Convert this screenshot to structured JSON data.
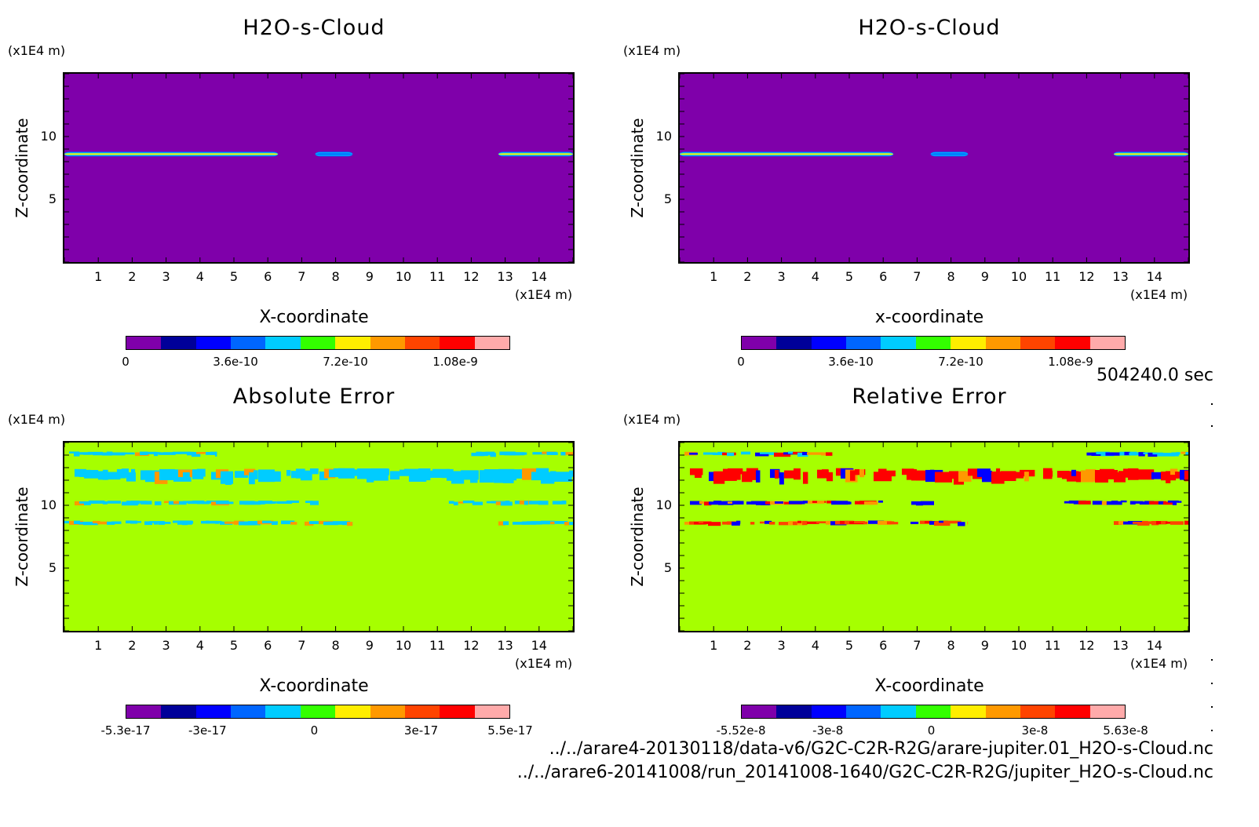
{
  "time_label": "504240.0 sec",
  "files": [
    "../../arare4-20130118/data-v6/G2C-C2R-R2G/arare-jupiter.01_H2O-s-Cloud.nc",
    "../../arare6-20141008/run_20141008-1640/G2C-C2R-R2G/jupiter_H2O-s-Cloud.nc"
  ],
  "colors": {
    "field_bg": "#7f00aa",
    "error_bg": "#a6ff00",
    "colorbar": [
      "#7f00aa",
      "#000099",
      "#0000ff",
      "#0066ff",
      "#00ccff",
      "#33ff00",
      "#ffee00",
      "#ff9900",
      "#ff4400",
      "#ff0000",
      "#ffaaaa"
    ]
  },
  "chart_data": [
    {
      "type": "heatmap",
      "title": "H2O-s-Cloud",
      "xlabel": "X-coordinate",
      "ylabel": "Z-coordinate",
      "x_unit": "(x1E4 m)",
      "y_unit": "(x1E4 m)",
      "xlim": [
        0,
        15
      ],
      "ylim": [
        0,
        15
      ],
      "xticks": [
        "1",
        "2",
        "3",
        "4",
        "5",
        "6",
        "7",
        "8",
        "9",
        "10",
        "11",
        "12",
        "13",
        "14"
      ],
      "yticks": [
        "10",
        "5"
      ],
      "colorbar_labels": [
        "0",
        "3.6e-10",
        "7.2e-10",
        "1.08e-9"
      ],
      "colorbar_label_values": [
        0,
        3.6e-10,
        7.2e-10,
        1.08e-09
      ],
      "colorbar_range": [
        0,
        1.26e-09
      ],
      "features": [
        {
          "z": 8.6,
          "x": [
            0,
            6.3
          ],
          "peak": 7.2e-10
        },
        {
          "z": 8.6,
          "x": [
            7.4,
            8.5
          ],
          "peak": 3.6e-10
        },
        {
          "z": 8.6,
          "x": [
            12.8,
            15
          ],
          "peak": 7.2e-10
        }
      ]
    },
    {
      "type": "heatmap",
      "title": "H2O-s-Cloud",
      "xlabel": "x-coordinate",
      "ylabel": "Z-coordinate",
      "x_unit": "(x1E4 m)",
      "y_unit": "(x1E4 m)",
      "xlim": [
        0,
        15
      ],
      "ylim": [
        0,
        15
      ],
      "xticks": [
        "1",
        "2",
        "3",
        "4",
        "5",
        "6",
        "7",
        "8",
        "9",
        "10",
        "11",
        "12",
        "13",
        "14"
      ],
      "yticks": [
        "10",
        "5"
      ],
      "colorbar_labels": [
        "0",
        "3.6e-10",
        "7.2e-10",
        "1.08e-9"
      ],
      "colorbar_label_values": [
        0,
        3.6e-10,
        7.2e-10,
        1.08e-09
      ],
      "colorbar_range": [
        0,
        1.26e-09
      ],
      "features": [
        {
          "z": 8.6,
          "x": [
            0,
            6.3
          ],
          "peak": 7.2e-10
        },
        {
          "z": 8.6,
          "x": [
            7.4,
            8.5
          ],
          "peak": 3.6e-10
        },
        {
          "z": 8.6,
          "x": [
            12.8,
            15
          ],
          "peak": 7.2e-10
        }
      ]
    },
    {
      "type": "heatmap",
      "title": "Absolute Error",
      "xlabel": "X-coordinate",
      "ylabel": "Z-coordinate",
      "x_unit": "(x1E4 m)",
      "y_unit": "(x1E4 m)",
      "xlim": [
        0,
        15
      ],
      "ylim": [
        0,
        15
      ],
      "xticks": [
        "1",
        "2",
        "3",
        "4",
        "5",
        "6",
        "7",
        "8",
        "9",
        "10",
        "11",
        "12",
        "13",
        "14"
      ],
      "yticks": [
        "10",
        "5"
      ],
      "colorbar_labels": [
        "-5.3e-17",
        "-3e-17",
        "0",
        "3e-17",
        "5.5e-17"
      ],
      "colorbar_label_values": [
        -5.3e-17,
        -3e-17,
        0,
        3e-17,
        5.5e-17
      ],
      "colorbar_range": [
        -5.3e-17,
        5.5e-17
      ],
      "features": [
        {
          "z": 14.1,
          "x": [
            0,
            4.5
          ],
          "level": -1e-17
        },
        {
          "z": 14.1,
          "x": [
            12.0,
            15
          ],
          "level": -1e-17
        },
        {
          "z": 12.4,
          "x": [
            0.3,
            15
          ],
          "level": -1e-17
        },
        {
          "z": 10.2,
          "x": [
            0.3,
            7.5
          ],
          "level": -1e-17
        },
        {
          "z": 10.2,
          "x": [
            11.2,
            14.8
          ],
          "level": -1e-17
        },
        {
          "z": 8.6,
          "x": [
            0,
            8.5
          ],
          "level": -1e-17
        },
        {
          "z": 8.6,
          "x": [
            12.8,
            15
          ],
          "level": -1e-17
        }
      ]
    },
    {
      "type": "heatmap",
      "title": "Relative Error",
      "xlabel": "X-coordinate",
      "ylabel": "Z-coordinate",
      "x_unit": "(x1E4 m)",
      "y_unit": "(x1E4 m)",
      "xlim": [
        0,
        15
      ],
      "ylim": [
        0,
        15
      ],
      "xticks": [
        "1",
        "2",
        "3",
        "4",
        "5",
        "6",
        "7",
        "8",
        "9",
        "10",
        "11",
        "12",
        "13",
        "14"
      ],
      "yticks": [
        "10",
        "5"
      ],
      "colorbar_labels": [
        "-5.52e-8",
        "-3e-8",
        "0",
        "3e-8",
        "5.63e-8"
      ],
      "colorbar_label_values": [
        -5.52e-08,
        -3e-08,
        0,
        3e-08,
        5.63e-08
      ],
      "colorbar_range": [
        -5.52e-08,
        5.63e-08
      ],
      "features": [
        {
          "z": 14.1,
          "x": [
            0,
            4.5
          ],
          "level": -1e-08
        },
        {
          "z": 14.1,
          "x": [
            12.0,
            15
          ],
          "level": -1e-08
        },
        {
          "z": 12.4,
          "x": [
            0.3,
            15
          ],
          "level": 4e-08
        },
        {
          "z": 10.2,
          "x": [
            0.3,
            7.5
          ],
          "level": -3e-08
        },
        {
          "z": 10.2,
          "x": [
            11.2,
            14.8
          ],
          "level": -3e-08
        },
        {
          "z": 8.6,
          "x": [
            0,
            8.5
          ],
          "level": 3e-08
        },
        {
          "z": 8.6,
          "x": [
            12.8,
            15
          ],
          "level": 3e-08
        }
      ]
    }
  ]
}
